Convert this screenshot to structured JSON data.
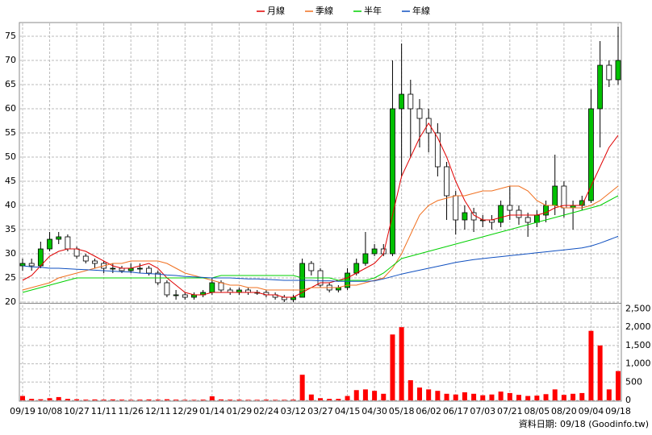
{
  "chart_data": [
    {
      "type": "candlestick",
      "legend": "top",
      "grid": true,
      "up_color": "#00c000",
      "down_color": "#ffffff",
      "footnote": "資料日期: 09/18 (Goodinfo.tw)",
      "categories": [
        "09/19",
        null,
        null,
        "10/08",
        null,
        null,
        "10/27",
        null,
        null,
        "11/11",
        null,
        null,
        "11/26",
        null,
        null,
        "12/11",
        null,
        null,
        "12/29",
        null,
        null,
        "01/14",
        null,
        null,
        "01/29",
        null,
        null,
        "02/24",
        null,
        null,
        "03/12",
        null,
        null,
        "03/27",
        null,
        null,
        "04/15",
        null,
        null,
        "04/30",
        null,
        null,
        "05/18",
        null,
        null,
        "06/02",
        null,
        null,
        "06/17",
        null,
        null,
        "07/03",
        null,
        null,
        "07/21",
        null,
        null,
        "08/05",
        null,
        null,
        "08/20",
        null,
        null,
        "09/04",
        null,
        null,
        "09/18"
      ],
      "open": [
        27.5,
        28,
        27.5,
        31,
        33,
        33.5,
        31,
        29.5,
        28.5,
        28,
        27,
        27,
        26.5,
        27,
        27,
        26,
        24,
        21.5,
        21.5,
        21,
        21.5,
        22,
        24,
        22.5,
        22,
        22.5,
        22,
        22,
        21.5,
        21,
        20.5,
        21,
        28,
        26.5,
        23.5,
        22.5,
        23,
        26,
        28,
        30,
        31,
        30,
        60,
        63,
        60,
        58,
        55,
        48,
        42,
        37,
        38.5,
        37,
        37,
        36.5,
        40,
        39,
        37.5,
        36.5,
        38,
        40,
        44,
        39.5,
        40,
        41,
        60,
        69,
        66
      ],
      "high": [
        29,
        29,
        32.5,
        34.5,
        34.5,
        34,
        31.5,
        30,
        29,
        28.5,
        28,
        27.5,
        28,
        28,
        27.5,
        26.5,
        24.5,
        22.5,
        22,
        22,
        22.5,
        25,
        24.5,
        23,
        23,
        23,
        22.5,
        22.5,
        22,
        21.5,
        21.5,
        29,
        28.5,
        27,
        24,
        23.5,
        27,
        29,
        34.5,
        32,
        32,
        70,
        73.5,
        66,
        62,
        60,
        57,
        49,
        43,
        40,
        39.5,
        38,
        38,
        41,
        44,
        40,
        38.5,
        39,
        41,
        50.5,
        45,
        41,
        42,
        64,
        74,
        70,
        77
      ],
      "low": [
        26.5,
        26.5,
        27,
        30.5,
        32,
        30.5,
        29,
        28,
        27,
        26,
        26,
        26,
        26,
        26,
        25.5,
        23.5,
        21,
        20.5,
        20.5,
        20.5,
        21,
        21.5,
        22,
        21.5,
        21.5,
        21.5,
        21.5,
        21,
        20.5,
        20,
        20,
        21,
        25.5,
        23,
        22,
        22,
        22.5,
        25.5,
        27.5,
        29.5,
        29.5,
        29.5,
        46,
        50,
        52,
        51,
        46,
        37,
        34,
        35,
        34.5,
        35.5,
        35,
        35.5,
        37,
        36,
        33.5,
        35.5,
        36.5,
        38,
        37.5,
        35,
        39,
        40.5,
        52,
        64.5,
        65
      ],
      "close": [
        28,
        27.5,
        31,
        33,
        33.5,
        31,
        29.5,
        28.5,
        28,
        27,
        27,
        26.5,
        27,
        27,
        26,
        24,
        21.5,
        21.5,
        21,
        21.5,
        22,
        24,
        22.5,
        22,
        22.5,
        22,
        22,
        21.5,
        21,
        20.5,
        21,
        28,
        26.5,
        23.5,
        22.5,
        23,
        26,
        28,
        30,
        31,
        30,
        60,
        63,
        60,
        58,
        55,
        48,
        42,
        37,
        38.5,
        37,
        37,
        36.5,
        40,
        39,
        37.5,
        36.5,
        38,
        40,
        44,
        39.5,
        40,
        41,
        60,
        69,
        66,
        70
      ],
      "series": [
        {
          "name": "月線",
          "color": "#e00000",
          "values": [
            24.5,
            25.5,
            27.5,
            29.5,
            30.5,
            31,
            31,
            30.5,
            29.5,
            28.5,
            27.5,
            27,
            27,
            27.5,
            28,
            27,
            25,
            23.5,
            22,
            21.5,
            21.5,
            22,
            22,
            22,
            22,
            22,
            22,
            21.5,
            21.5,
            21,
            21,
            22,
            23,
            24,
            24,
            24.5,
            25,
            26,
            27,
            28,
            30,
            38,
            46,
            50,
            54,
            57,
            54,
            50,
            45,
            41,
            38,
            37,
            37,
            37.5,
            38,
            38,
            38,
            38,
            38.5,
            39.5,
            40,
            40,
            40,
            44,
            48,
            52,
            54.5
          ]
        },
        {
          "name": "季線",
          "color": "#f07020",
          "values": [
            22.5,
            23,
            23.5,
            24,
            25,
            25.5,
            26,
            26.5,
            27,
            27.5,
            28,
            28,
            28.5,
            28.5,
            28.5,
            28.5,
            28,
            27,
            26,
            25.5,
            25,
            24.5,
            24,
            23.5,
            23.5,
            23,
            23,
            22.5,
            22.5,
            22.5,
            22.5,
            22.5,
            23,
            23,
            23,
            23,
            23.5,
            23.5,
            24,
            24.5,
            25,
            27,
            30,
            34,
            38,
            40,
            41,
            41.5,
            42,
            42,
            42.5,
            43,
            43,
            43.5,
            44,
            44,
            43,
            41,
            40,
            40,
            39.5,
            39.5,
            39.5,
            40,
            41,
            42.5,
            44
          ]
        },
        {
          "name": "半年",
          "color": "#00d000",
          "values": [
            22,
            22.5,
            23,
            23.5,
            24,
            24.5,
            25,
            25,
            25,
            25,
            25,
            25,
            25,
            25,
            25,
            25,
            25,
            25,
            25,
            25,
            25,
            25,
            25.5,
            25.5,
            25.5,
            25.5,
            25.5,
            25.5,
            25.5,
            25.5,
            25.5,
            25,
            25,
            25,
            25,
            24.5,
            24.5,
            24.5,
            24.5,
            25,
            26,
            27.5,
            29,
            29.5,
            30,
            30.5,
            31,
            31.5,
            32,
            32.5,
            33,
            33.5,
            34,
            34.5,
            35,
            35.5,
            36,
            36.5,
            37,
            37.5,
            38,
            38.5,
            39,
            39.5,
            40,
            41,
            42
          ]
        },
        {
          "name": "年線",
          "color": "#1050c0",
          "values": [
            27.5,
            27.3,
            27.2,
            27,
            27,
            26.9,
            26.8,
            26.7,
            26.6,
            26.5,
            26.4,
            26.3,
            26.2,
            26,
            25.9,
            25.8,
            25.6,
            25.5,
            25.3,
            25.2,
            25.1,
            25,
            25,
            25,
            24.9,
            24.8,
            24.8,
            24.7,
            24.6,
            24.5,
            24.5,
            24.5,
            24.5,
            24.4,
            24.4,
            24.3,
            24.3,
            24.3,
            24.3,
            24.4,
            24.8,
            25.3,
            25.8,
            26.2,
            26.6,
            27,
            27.4,
            27.8,
            28.2,
            28.5,
            28.8,
            29,
            29.2,
            29.4,
            29.6,
            29.8,
            30,
            30.2,
            30.4,
            30.6,
            30.8,
            31,
            31.2,
            31.6,
            32.2,
            32.9,
            33.6
          ]
        }
      ],
      "ylim": [
        20,
        77.5
      ],
      "yticks": [
        20,
        25,
        30,
        35,
        40,
        45,
        50,
        55,
        60,
        65,
        70,
        75
      ]
    },
    {
      "type": "bar",
      "color": "#ff0000",
      "grid": true,
      "values": [
        120,
        40,
        30,
        60,
        90,
        40,
        30,
        20,
        25,
        20,
        25,
        20,
        15,
        20,
        25,
        20,
        30,
        20,
        15,
        15,
        20,
        110,
        25,
        20,
        20,
        15,
        15,
        20,
        15,
        15,
        20,
        700,
        160,
        60,
        40,
        40,
        120,
        280,
        300,
        260,
        180,
        1800,
        2000,
        550,
        350,
        300,
        260,
        180,
        160,
        220,
        180,
        140,
        160,
        240,
        200,
        150,
        120,
        130,
        170,
        300,
        150,
        180,
        200,
        1900,
        1500,
        300,
        800
      ],
      "ylim": [
        0,
        2620
      ],
      "yticks": [
        0,
        500,
        {
          "value": 1000,
          "label": "1,000"
        },
        {
          "value": 1500,
          "label": "1,500"
        },
        {
          "value": 2000,
          "label": "2,000"
        },
        {
          "value": 2500,
          "label": "2,500"
        }
      ]
    }
  ]
}
